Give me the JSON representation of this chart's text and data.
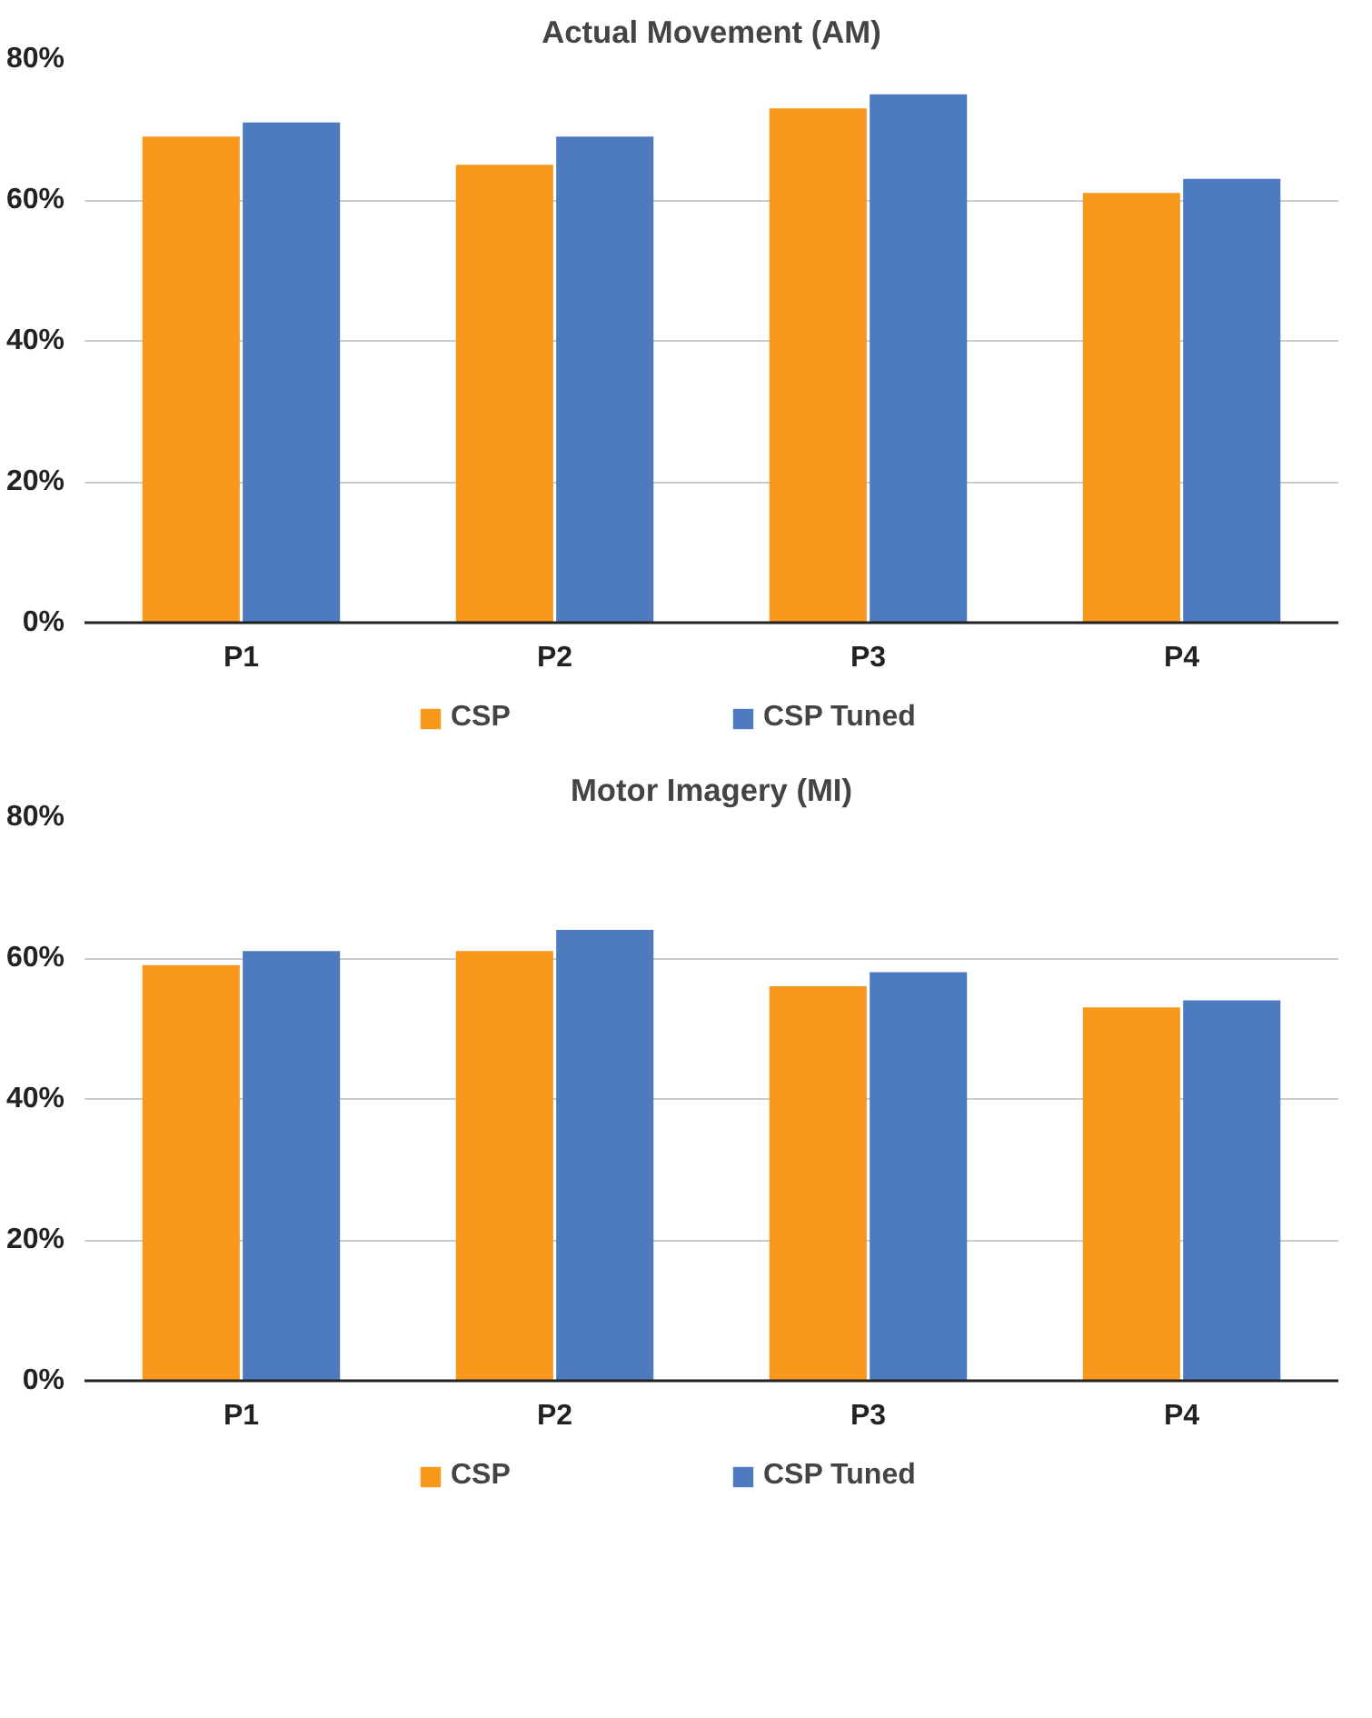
{
  "chart_data": [
    {
      "type": "bar",
      "title": "Actual Movement (AM)",
      "categories": [
        "P1",
        "P2",
        "P3",
        "P4"
      ],
      "series": [
        {
          "name": "CSP",
          "color": "#f7981d",
          "values": [
            69,
            65,
            73,
            61
          ]
        },
        {
          "name": "CSP Tuned",
          "color": "#4e7bbf",
          "values": [
            71,
            69,
            75,
            63
          ]
        }
      ],
      "ylim": [
        0,
        80
      ],
      "yticks": [
        {
          "value": 0,
          "label": "0%"
        },
        {
          "value": 20,
          "label": "20%"
        },
        {
          "value": 40,
          "label": "40%"
        },
        {
          "value": 60,
          "label": "60%"
        },
        {
          "value": 80,
          "label": "80%"
        }
      ],
      "grid": "y",
      "legend": "bottom"
    },
    {
      "type": "bar",
      "title": "Motor Imagery (MI)",
      "categories": [
        "P1",
        "P2",
        "P3",
        "P4"
      ],
      "series": [
        {
          "name": "CSP",
          "color": "#f7981d",
          "values": [
            59,
            61,
            56,
            53
          ]
        },
        {
          "name": "CSP Tuned",
          "color": "#4e7bbf",
          "values": [
            61,
            64,
            58,
            54
          ]
        }
      ],
      "ylim": [
        0,
        80
      ],
      "yticks": [
        {
          "value": 0,
          "label": "0%"
        },
        {
          "value": 20,
          "label": "20%"
        },
        {
          "value": 40,
          "label": "40%"
        },
        {
          "value": 60,
          "label": "60%"
        },
        {
          "value": 80,
          "label": "80%"
        }
      ],
      "grid": "y",
      "legend": "bottom"
    }
  ]
}
